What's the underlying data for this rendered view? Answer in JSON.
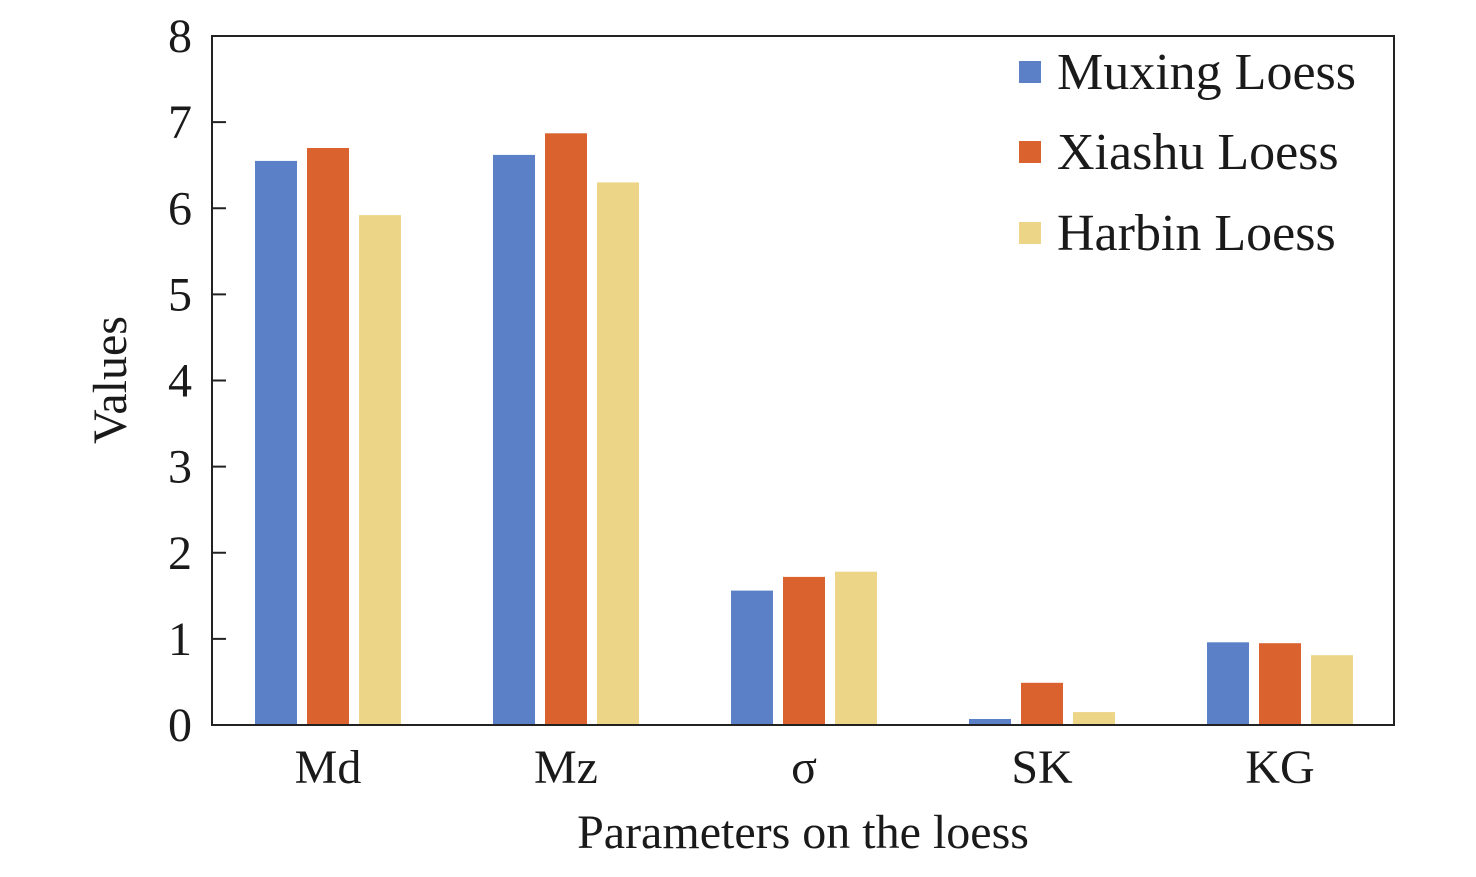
{
  "chart_data": {
    "type": "bar",
    "title": "",
    "xlabel": "Parameters on the loess",
    "ylabel": "Values",
    "categories": [
      "Md",
      "Mz",
      "σ",
      "SK",
      "KG"
    ],
    "ylim": [
      0,
      8
    ],
    "yticks": [
      "0",
      "1",
      "2",
      "3",
      "4",
      "5",
      "6",
      "7",
      "8"
    ],
    "grid": false,
    "legend_position": "top-right",
    "series": [
      {
        "name": "Muxing Loess",
        "color": "#5b80c8",
        "values": [
          6.55,
          6.62,
          1.56,
          0.07,
          0.96
        ]
      },
      {
        "name": "Xiashu Loess",
        "color": "#d9622f",
        "values": [
          6.7,
          6.87,
          1.72,
          0.49,
          0.95
        ]
      },
      {
        "name": "Harbin Loess",
        "color": "#ecd587",
        "values": [
          5.92,
          6.3,
          1.78,
          0.15,
          0.81
        ]
      }
    ]
  }
}
